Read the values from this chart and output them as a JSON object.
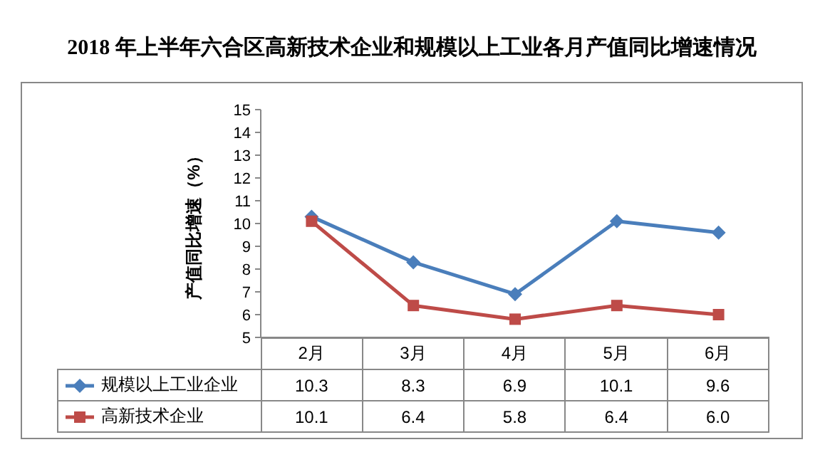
{
  "chart_data": {
    "type": "line",
    "title": "2018 年上半年六合区高新技术企业和规模以上工业各月产值同比增速情况",
    "ylabel": "产值同比增速（%）",
    "categories": [
      "2月",
      "3月",
      "4月",
      "5月",
      "6月"
    ],
    "series": [
      {
        "name": "规模以上工业企业",
        "color": "#4a7ebb",
        "marker": "diamond",
        "values": [
          10.3,
          8.3,
          6.9,
          10.1,
          9.6
        ],
        "value_labels": [
          "10.3",
          "8.3",
          "6.9",
          "10.1",
          "9.6"
        ]
      },
      {
        "name": "高新技术企业",
        "color": "#be4b48",
        "marker": "square",
        "values": [
          10.1,
          6.4,
          5.8,
          6.4,
          6.0
        ],
        "value_labels": [
          "10.1",
          "6.4",
          "5.8",
          "6.4",
          "6.0"
        ]
      }
    ],
    "ylim": [
      5,
      15
    ],
    "yticks": [
      5,
      6,
      7,
      8,
      9,
      10,
      11,
      12,
      13,
      14,
      15
    ],
    "legend": "bottom",
    "grid": false
  }
}
